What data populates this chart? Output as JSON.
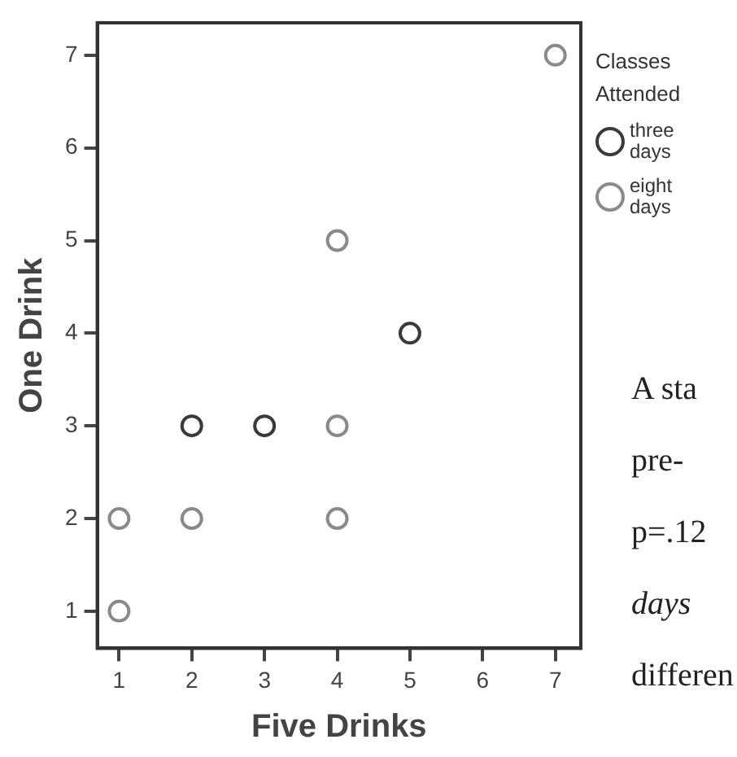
{
  "chart_data": {
    "type": "scatter",
    "xlabel": "Five Drinks",
    "ylabel": "One Drink",
    "legend_title": "Classes Attended",
    "legend": "right",
    "marker": "circle",
    "grid": false,
    "xlim": [
      0.7,
      7.35
    ],
    "ylim": [
      0.6,
      7.35
    ],
    "xticks": [
      1,
      2,
      3,
      4,
      5,
      6,
      7
    ],
    "yticks": [
      1,
      2,
      3,
      4,
      5,
      6,
      7
    ],
    "series": [
      {
        "name": "three days",
        "color": "#3a3a3a",
        "x": [
          2,
          3,
          5
        ],
        "values": [
          3,
          3,
          4
        ]
      },
      {
        "name": "eight days",
        "color": "#8a8a8a",
        "x": [
          1,
          1,
          2,
          4,
          4,
          4,
          7
        ],
        "values": [
          1,
          2,
          2,
          2,
          3,
          5,
          7
        ]
      }
    ],
    "annotations": [
      "A sta",
      "pre-",
      "p=.12",
      "days",
      "differen"
    ]
  }
}
